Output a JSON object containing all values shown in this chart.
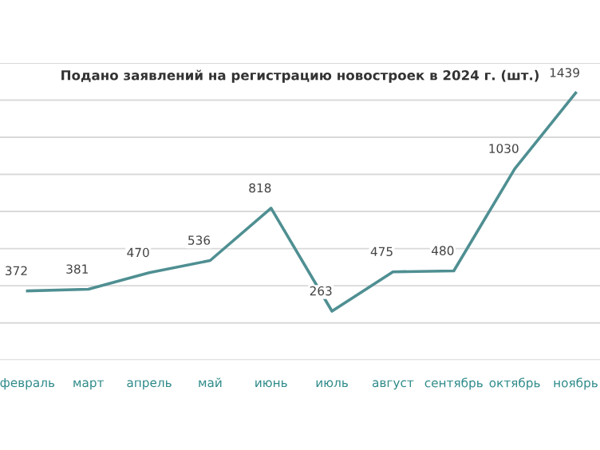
{
  "chart_data": {
    "type": "line",
    "title": "Подано заявлений на регистрацию новостроек в 2024 г. (шт.)",
    "categories": [
      "февраль",
      "март",
      "апрель",
      "май",
      "июнь",
      "июль",
      "август",
      "сентябрь",
      "октябрь",
      "ноябрь"
    ],
    "series": [
      {
        "color": "#4f8f92",
        "values": [
          372,
          381,
          470,
          536,
          818,
          263,
          475,
          480,
          1030,
          1439
        ]
      }
    ],
    "data_labels": true,
    "ylim": [
      0,
      1600
    ],
    "yticks": [
      {
        "value": 0,
        "label": null
      },
      {
        "value": 200,
        "label": null
      },
      {
        "value": 400,
        "label": null
      },
      {
        "value": 600,
        "label": null
      },
      {
        "value": 800,
        "label": null
      },
      {
        "value": 1000,
        "label": null
      },
      {
        "value": 1200,
        "label": null
      },
      {
        "value": 1400,
        "label": null
      },
      {
        "value": 1600,
        "label": null
      }
    ],
    "grid": "y",
    "tick_labels": "x",
    "marker": "none",
    "line_style": "solid"
  }
}
